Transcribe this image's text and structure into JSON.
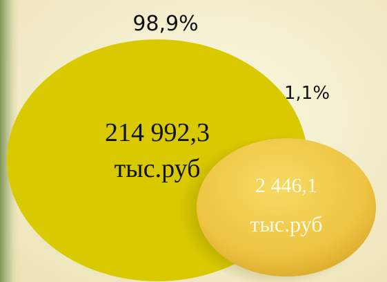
{
  "items": [
    {
      "percent": "98,9%",
      "value": "214 992,3",
      "unit": "тыс.руб"
    },
    {
      "percent": "1,1%",
      "value": "2 446,1",
      "unit": "тыс.руб"
    }
  ]
}
